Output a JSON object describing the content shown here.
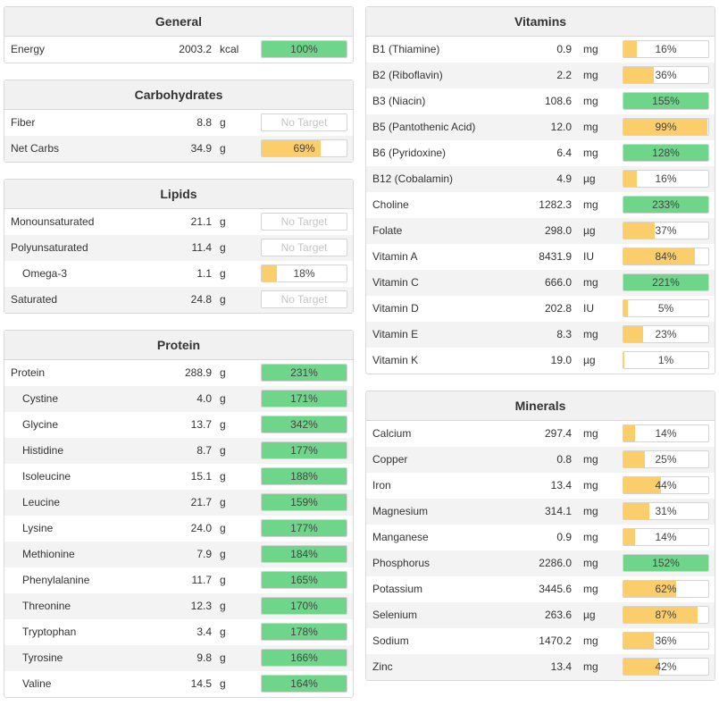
{
  "panels": {
    "general": {
      "title": "General",
      "rows": [
        {
          "name": "Energy",
          "amount": "2003.2",
          "unit": "kcal",
          "pct": "100%",
          "fill": 100,
          "color": "green"
        }
      ]
    },
    "carbohydrates": {
      "title": "Carbohydrates",
      "rows": [
        {
          "name": "Fiber",
          "amount": "8.8",
          "unit": "g",
          "pct": "No Target",
          "fill": 0,
          "color": "none"
        },
        {
          "name": "Net Carbs",
          "amount": "34.9",
          "unit": "g",
          "pct": "69%",
          "fill": 69,
          "color": "orange"
        }
      ]
    },
    "lipids": {
      "title": "Lipids",
      "rows": [
        {
          "name": "Monounsaturated",
          "amount": "21.1",
          "unit": "g",
          "pct": "No Target",
          "fill": 0,
          "color": "none"
        },
        {
          "name": "Polyunsaturated",
          "amount": "11.4",
          "unit": "g",
          "pct": "No Target",
          "fill": 0,
          "color": "none"
        },
        {
          "name": "Omega-3",
          "amount": "1.1",
          "unit": "g",
          "pct": "18%",
          "fill": 18,
          "color": "orange",
          "indent": true
        },
        {
          "name": "Saturated",
          "amount": "24.8",
          "unit": "g",
          "pct": "No Target",
          "fill": 0,
          "color": "none"
        }
      ]
    },
    "protein": {
      "title": "Protein",
      "rows": [
        {
          "name": "Protein",
          "amount": "288.9",
          "unit": "g",
          "pct": "231%",
          "fill": 100,
          "color": "green"
        },
        {
          "name": "Cystine",
          "amount": "4.0",
          "unit": "g",
          "pct": "171%",
          "fill": 100,
          "color": "green",
          "indent": true
        },
        {
          "name": "Glycine",
          "amount": "13.7",
          "unit": "g",
          "pct": "342%",
          "fill": 100,
          "color": "green",
          "indent": true
        },
        {
          "name": "Histidine",
          "amount": "8.7",
          "unit": "g",
          "pct": "177%",
          "fill": 100,
          "color": "green",
          "indent": true
        },
        {
          "name": "Isoleucine",
          "amount": "15.1",
          "unit": "g",
          "pct": "188%",
          "fill": 100,
          "color": "green",
          "indent": true
        },
        {
          "name": "Leucine",
          "amount": "21.7",
          "unit": "g",
          "pct": "159%",
          "fill": 100,
          "color": "green",
          "indent": true
        },
        {
          "name": "Lysine",
          "amount": "24.0",
          "unit": "g",
          "pct": "177%",
          "fill": 100,
          "color": "green",
          "indent": true
        },
        {
          "name": "Methionine",
          "amount": "7.9",
          "unit": "g",
          "pct": "184%",
          "fill": 100,
          "color": "green",
          "indent": true
        },
        {
          "name": "Phenylalanine",
          "amount": "11.7",
          "unit": "g",
          "pct": "165%",
          "fill": 100,
          "color": "green",
          "indent": true
        },
        {
          "name": "Threonine",
          "amount": "12.3",
          "unit": "g",
          "pct": "170%",
          "fill": 100,
          "color": "green",
          "indent": true
        },
        {
          "name": "Tryptophan",
          "amount": "3.4",
          "unit": "g",
          "pct": "178%",
          "fill": 100,
          "color": "green",
          "indent": true
        },
        {
          "name": "Tyrosine",
          "amount": "9.8",
          "unit": "g",
          "pct": "166%",
          "fill": 100,
          "color": "green",
          "indent": true
        },
        {
          "name": "Valine",
          "amount": "14.5",
          "unit": "g",
          "pct": "164%",
          "fill": 100,
          "color": "green",
          "indent": true
        }
      ]
    },
    "vitamins": {
      "title": "Vitamins",
      "rows": [
        {
          "name": "B1 (Thiamine)",
          "amount": "0.9",
          "unit": "mg",
          "pct": "16%",
          "fill": 16,
          "color": "orange"
        },
        {
          "name": "B2 (Riboflavin)",
          "amount": "2.2",
          "unit": "mg",
          "pct": "36%",
          "fill": 36,
          "color": "orange"
        },
        {
          "name": "B3 (Niacin)",
          "amount": "108.6",
          "unit": "mg",
          "pct": "155%",
          "fill": 100,
          "color": "green"
        },
        {
          "name": "B5 (Pantothenic Acid)",
          "amount": "12.0",
          "unit": "mg",
          "pct": "99%",
          "fill": 99,
          "color": "orange"
        },
        {
          "name": "B6 (Pyridoxine)",
          "amount": "6.4",
          "unit": "mg",
          "pct": "128%",
          "fill": 100,
          "color": "green"
        },
        {
          "name": "B12 (Cobalamin)",
          "amount": "4.9",
          "unit": "µg",
          "pct": "16%",
          "fill": 16,
          "color": "orange"
        },
        {
          "name": "Choline",
          "amount": "1282.3",
          "unit": "mg",
          "pct": "233%",
          "fill": 100,
          "color": "green"
        },
        {
          "name": "Folate",
          "amount": "298.0",
          "unit": "µg",
          "pct": "37%",
          "fill": 37,
          "color": "orange"
        },
        {
          "name": "Vitamin A",
          "amount": "8431.9",
          "unit": "IU",
          "pct": "84%",
          "fill": 84,
          "color": "orange"
        },
        {
          "name": "Vitamin C",
          "amount": "666.0",
          "unit": "mg",
          "pct": "221%",
          "fill": 100,
          "color": "green"
        },
        {
          "name": "Vitamin D",
          "amount": "202.8",
          "unit": "IU",
          "pct": "5%",
          "fill": 5,
          "color": "orange"
        },
        {
          "name": "Vitamin E",
          "amount": "8.3",
          "unit": "mg",
          "pct": "23%",
          "fill": 23,
          "color": "orange"
        },
        {
          "name": "Vitamin K",
          "amount": "19.0",
          "unit": "µg",
          "pct": "1%",
          "fill": 1,
          "color": "orange"
        }
      ]
    },
    "minerals": {
      "title": "Minerals",
      "rows": [
        {
          "name": "Calcium",
          "amount": "297.4",
          "unit": "mg",
          "pct": "14%",
          "fill": 14,
          "color": "orange"
        },
        {
          "name": "Copper",
          "amount": "0.8",
          "unit": "mg",
          "pct": "25%",
          "fill": 25,
          "color": "orange"
        },
        {
          "name": "Iron",
          "amount": "13.4",
          "unit": "mg",
          "pct": "44%",
          "fill": 44,
          "color": "orange"
        },
        {
          "name": "Magnesium",
          "amount": "314.1",
          "unit": "mg",
          "pct": "31%",
          "fill": 31,
          "color": "orange"
        },
        {
          "name": "Manganese",
          "amount": "0.9",
          "unit": "mg",
          "pct": "14%",
          "fill": 14,
          "color": "orange"
        },
        {
          "name": "Phosphorus",
          "amount": "2286.0",
          "unit": "mg",
          "pct": "152%",
          "fill": 100,
          "color": "green"
        },
        {
          "name": "Potassium",
          "amount": "3445.6",
          "unit": "mg",
          "pct": "62%",
          "fill": 62,
          "color": "orange"
        },
        {
          "name": "Selenium",
          "amount": "263.6",
          "unit": "µg",
          "pct": "87%",
          "fill": 87,
          "color": "orange"
        },
        {
          "name": "Sodium",
          "amount": "1470.2",
          "unit": "mg",
          "pct": "36%",
          "fill": 36,
          "color": "orange"
        },
        {
          "name": "Zinc",
          "amount": "13.4",
          "unit": "mg",
          "pct": "42%",
          "fill": 42,
          "color": "orange"
        }
      ]
    }
  },
  "colors": {
    "green": "#6fd58b",
    "orange": "#fccd6b",
    "border": "#d8d8d8",
    "header_bg": "#f1f1f1"
  }
}
